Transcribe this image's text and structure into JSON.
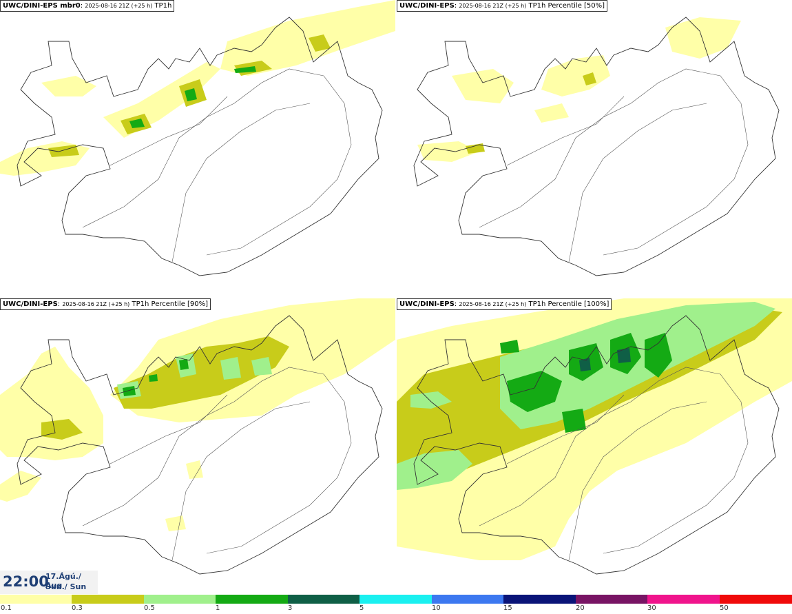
{
  "panels": [
    {
      "model": "UWC/DINI-EPS mbr0",
      "date": "2025-08-16 21Z (+25 h)",
      "field": "TP1h"
    },
    {
      "model": "UWC/DINI-EPS",
      "date": "2025-08-16 21Z (+25 h)",
      "field": "TP1h Percentile [50%]"
    },
    {
      "model": "UWC/DINI-EPS",
      "date": "2025-08-16 21Z (+25 h)",
      "field": "TP1h Percentile [90%]"
    },
    {
      "model": "UWC/DINI-EPS",
      "date": "2025-08-16 21Z (+25 h)",
      "field": "TP1h Percentile [100%]"
    }
  ],
  "valid_time": {
    "time": "22:00",
    "date_line": "17.Ágú./ Aug",
    "day_line": "Sun./ Sun"
  },
  "legend": {
    "labels": [
      "0.1",
      "0.3",
      "0.5",
      "1",
      "3",
      "5",
      "10",
      "15",
      "20",
      "30",
      "50"
    ],
    "colors": [
      "#ffffa8",
      "#c8cc1a",
      "#a0f08c",
      "#14aa14",
      "#0f5f46",
      "#1af0f0",
      "#3c78f0",
      "#0a1478",
      "#781464",
      "#f0148c",
      "#f00a0a"
    ]
  }
}
